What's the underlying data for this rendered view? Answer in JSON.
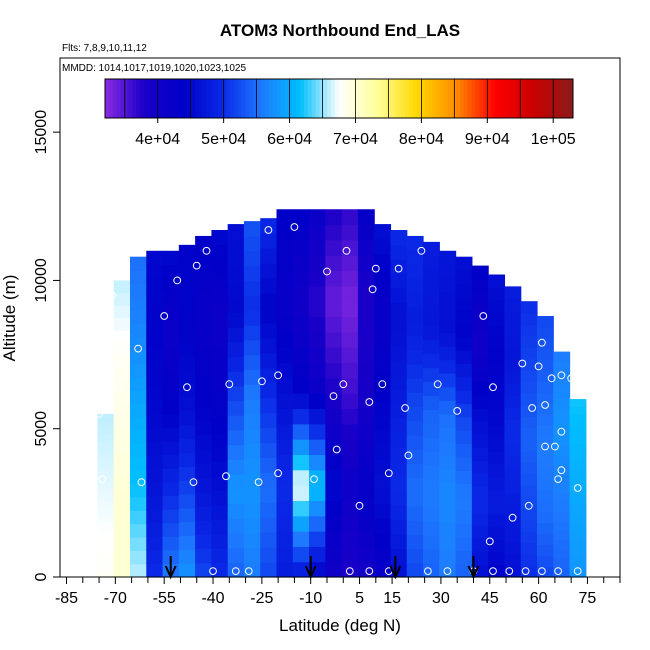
{
  "chart_data": {
    "type": "heatmap",
    "title": "ATOM3 Northbound End_LAS",
    "subtitle_flights": "Flts: 7,8,9,10,11,12",
    "subtitle_dates": "MMDD: 1014,1017,1019,1020,1023,1025",
    "xlabel": "Latitude (deg N)",
    "ylabel": "Altitude (m)",
    "xlim": [
      -87,
      85
    ],
    "ylim": [
      0,
      17500
    ],
    "x_ticks": [
      -85,
      -70,
      -55,
      -40,
      -25,
      -10,
      5,
      15,
      30,
      45,
      60,
      75
    ],
    "x_minor_ticks": [
      -80,
      -75,
      -65,
      -60,
      -50,
      -45,
      -35,
      -30,
      -20,
      -15,
      -5,
      0,
      10,
      20,
      25,
      35,
      40,
      50,
      55,
      65,
      70,
      80,
      85
    ],
    "y_ticks": [
      0,
      5000,
      10000,
      15000
    ],
    "colorbar": {
      "ticks": [
        40000,
        50000,
        60000,
        70000,
        80000,
        90000,
        100000
      ],
      "tick_labels": [
        "4e+04",
        "5e+04",
        "6e+04",
        "7e+04",
        "8e+04",
        "9e+04",
        "1e+05"
      ],
      "min": 32000,
      "max": 103000,
      "colors": [
        "#8a2be2",
        "#1a00c8",
        "#0000c8",
        "#0a28e6",
        "#1e78ff",
        "#00bfff",
        "#ffffff",
        "#ffff99",
        "#ffd700",
        "#ff8c00",
        "#ff0000",
        "#c80000",
        "#8b1a1a"
      ]
    },
    "columns": [
      {
        "lat": -73,
        "ceiling": 5500,
        "values": [
          68000,
          67000,
          66000
        ]
      },
      {
        "lat": -68,
        "ceiling": 10000,
        "values": [
          70000,
          70000,
          69000,
          68000,
          66000
        ]
      },
      {
        "lat": -63,
        "ceiling": 10800,
        "values": [
          66000,
          62000,
          60000,
          57000,
          55000
        ]
      },
      {
        "lat": -58,
        "ceiling": 11000,
        "values": [
          50000,
          47000,
          45000,
          44000,
          45000
        ]
      },
      {
        "lat": -53,
        "ceiling": 11000,
        "values": [
          56000,
          50000,
          44000,
          41000,
          45000
        ]
      },
      {
        "lat": -48,
        "ceiling": 11200,
        "values": [
          58000,
          52000,
          46000,
          44000,
          44000
        ]
      },
      {
        "lat": -43,
        "ceiling": 11500,
        "values": [
          52000,
          47000,
          44000,
          42000,
          44000
        ]
      },
      {
        "lat": -38,
        "ceiling": 11700,
        "values": [
          50000,
          46000,
          43000,
          41000,
          45000
        ]
      },
      {
        "lat": -33,
        "ceiling": 11900,
        "values": [
          54000,
          58000,
          52000,
          45000,
          46000
        ]
      },
      {
        "lat": -28,
        "ceiling": 12000,
        "values": [
          56000,
          58000,
          56000,
          50000,
          53000
        ]
      },
      {
        "lat": -23,
        "ceiling": 12100,
        "values": [
          52000,
          55000,
          50000,
          44000,
          50000
        ]
      },
      {
        "lat": -18,
        "ceiling": 12400,
        "values": [
          48000,
          50000,
          46000,
          42000,
          44000
        ]
      },
      {
        "lat": -13,
        "ceiling": 12400,
        "values": [
          47000,
          68000,
          44000,
          40000,
          44000
        ]
      },
      {
        "lat": -8,
        "ceiling": 12400,
        "values": [
          44000,
          62000,
          42000,
          37000,
          42000
        ]
      },
      {
        "lat": -3,
        "ceiling": 12400,
        "values": [
          40000,
          45000,
          38000,
          34000,
          38000
        ]
      },
      {
        "lat": 2,
        "ceiling": 12400,
        "values": [
          38000,
          41000,
          36000,
          33000,
          37000
        ]
      },
      {
        "lat": 7,
        "ceiling": 12400,
        "values": [
          40000,
          43000,
          39000,
          38000,
          43000
        ]
      },
      {
        "lat": 12,
        "ceiling": 11900,
        "values": [
          42000,
          46000,
          44000,
          42000,
          46000
        ]
      },
      {
        "lat": 17,
        "ceiling": 11700,
        "values": [
          46000,
          50000,
          48000,
          46000,
          50000
        ]
      },
      {
        "lat": 22,
        "ceiling": 11500,
        "values": [
          52000,
          55000,
          52000,
          48000,
          50000
        ]
      },
      {
        "lat": 27,
        "ceiling": 11300,
        "values": [
          54000,
          56000,
          54000,
          47000,
          48000
        ]
      },
      {
        "lat": 32,
        "ceiling": 11000,
        "values": [
          56000,
          57000,
          55000,
          46000,
          47000
        ]
      },
      {
        "lat": 37,
        "ceiling": 10800,
        "values": [
          54000,
          56000,
          52000,
          44000,
          46000
        ]
      },
      {
        "lat": 42,
        "ceiling": 10500,
        "values": [
          46000,
          50000,
          46000,
          40000,
          44000
        ]
      },
      {
        "lat": 47,
        "ceiling": 10200,
        "values": [
          44000,
          48000,
          45000,
          44000,
          46000
        ]
      },
      {
        "lat": 52,
        "ceiling": 9800,
        "values": [
          46000,
          48000,
          50000,
          47000,
          48000
        ]
      },
      {
        "lat": 57,
        "ceiling": 9300,
        "values": [
          50000,
          52000,
          54000,
          52000,
          50000
        ]
      },
      {
        "lat": 62,
        "ceiling": 8800,
        "values": [
          52000,
          55000,
          56000,
          54000,
          52000
        ]
      },
      {
        "lat": 67,
        "ceiling": 7600,
        "values": [
          54000,
          56000,
          58000,
          56000
        ]
      },
      {
        "lat": 72,
        "ceiling": 6000,
        "values": [
          58000,
          60000,
          62000
        ]
      }
    ],
    "sample_points": [
      [
        -73,
        300
      ],
      [
        -74,
        3300
      ],
      [
        -75,
        5500
      ],
      [
        -74,
        6600
      ],
      [
        -72,
        7500
      ],
      [
        -71,
        9500
      ],
      [
        -69,
        6400
      ],
      [
        -62,
        3200
      ],
      [
        -63,
        7700
      ],
      [
        -55,
        8800
      ],
      [
        -51,
        10000
      ],
      [
        -48,
        6400
      ],
      [
        -45,
        10500
      ],
      [
        -42,
        11000
      ],
      [
        -40,
        200
      ],
      [
        -46,
        3200
      ],
      [
        -36,
        3400
      ],
      [
        -35,
        6500
      ],
      [
        -33,
        200
      ],
      [
        -29,
        200
      ],
      [
        -26,
        3200
      ],
      [
        -25,
        6600
      ],
      [
        -23,
        11700
      ],
      [
        -20,
        3500
      ],
      [
        -20,
        6800
      ],
      [
        -15,
        11800
      ],
      [
        -9,
        3300
      ],
      [
        -5,
        10300
      ],
      [
        -3,
        6100
      ],
      [
        -2,
        4300
      ],
      [
        0,
        6500
      ],
      [
        2,
        200
      ],
      [
        1,
        11000
      ],
      [
        5,
        2400
      ],
      [
        8,
        200
      ],
      [
        8,
        5900
      ],
      [
        9,
        9700
      ],
      [
        10,
        10400
      ],
      [
        12,
        6500
      ],
      [
        14,
        3500
      ],
      [
        14,
        200
      ],
      [
        17,
        10400
      ],
      [
        19,
        5700
      ],
      [
        20,
        4100
      ],
      [
        24,
        11000
      ],
      [
        26,
        200
      ],
      [
        29,
        6500
      ],
      [
        32,
        200
      ],
      [
        35,
        5600
      ],
      [
        36,
        11500
      ],
      [
        40,
        200
      ],
      [
        43,
        8800
      ],
      [
        45,
        1200
      ],
      [
        46,
        200
      ],
      [
        46,
        6400
      ],
      [
        51,
        200
      ],
      [
        52,
        2000
      ],
      [
        55,
        7200
      ],
      [
        56,
        200
      ],
      [
        57,
        2400
      ],
      [
        58,
        5700
      ],
      [
        60,
        7100
      ],
      [
        61,
        7900
      ],
      [
        61,
        200
      ],
      [
        62,
        5800
      ],
      [
        62,
        4400
      ],
      [
        64,
        6700
      ],
      [
        65,
        4400
      ],
      [
        66,
        200
      ],
      [
        66,
        3300
      ],
      [
        67,
        6800
      ],
      [
        67,
        3600
      ],
      [
        67,
        4900
      ],
      [
        67,
        8500
      ],
      [
        70,
        6700
      ],
      [
        71,
        7500
      ],
      [
        72,
        200
      ],
      [
        72,
        3000
      ]
    ],
    "arrows_lat": [
      -53,
      -10,
      16,
      40
    ]
  }
}
